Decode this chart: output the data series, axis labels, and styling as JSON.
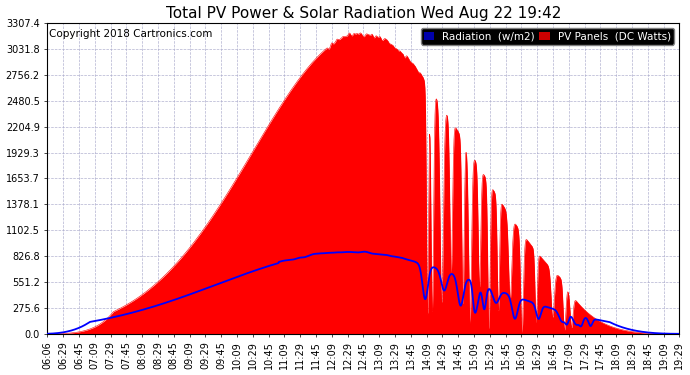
{
  "title": "Total PV Power & Solar Radiation Wed Aug 22 19:42",
  "copyright": "Copyright 2018 Cartronics.com",
  "yticks": [
    0.0,
    275.6,
    551.2,
    826.8,
    1102.5,
    1378.1,
    1653.7,
    1929.3,
    2204.9,
    2480.5,
    2756.2,
    3031.8,
    3307.4
  ],
  "xtick_labels": [
    "06:06",
    "06:29",
    "06:45",
    "07:09",
    "07:29",
    "07:45",
    "08:09",
    "08:29",
    "08:45",
    "09:09",
    "09:29",
    "09:45",
    "10:09",
    "10:29",
    "10:45",
    "11:09",
    "11:29",
    "11:45",
    "12:09",
    "12:29",
    "12:45",
    "13:09",
    "13:29",
    "13:45",
    "14:09",
    "14:29",
    "14:45",
    "15:09",
    "15:29",
    "15:45",
    "16:09",
    "16:29",
    "16:45",
    "17:09",
    "17:29",
    "17:45",
    "18:09",
    "18:29",
    "18:45",
    "19:09",
    "19:29"
  ],
  "ymax": 3307.4,
  "bg_color": "#ffffff",
  "grid_color": "#aaaacc",
  "pv_fill_color": "#ff0000",
  "radiation_line_color": "#0000ff",
  "legend_radiation_bg": "#0000aa",
  "legend_pv_bg": "#cc0000",
  "title_fontsize": 11,
  "tick_fontsize": 7.0,
  "copyright_fontsize": 7.5
}
